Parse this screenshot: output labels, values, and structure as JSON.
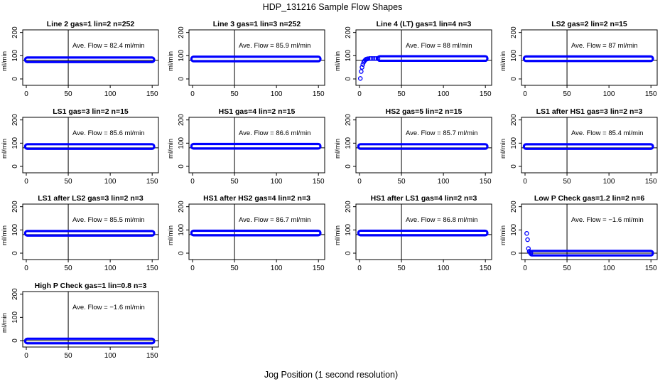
{
  "figure": {
    "title": "HDP_131216  Sample Flow Shapes",
    "xlabel": "Jog Position (1 second resolution)",
    "ylabel": "ml/min",
    "point_color": "#0000ff",
    "annotation_prefix": "Ave. Flow = ",
    "annotation_unit": "ml/min"
  },
  "chart_data": [
    {
      "type": "scatter",
      "title": "Line 2 gas=1 lin=2 n=252",
      "avg_flow": "82.4",
      "xlim": [
        0,
        150
      ],
      "ylim": [
        0,
        200
      ],
      "xticks": [
        0,
        50,
        100,
        150
      ],
      "yticks": [
        0,
        100,
        200
      ],
      "vline_x": 50,
      "hline_y": 80,
      "shape": "flat",
      "x": [
        1,
        150
      ],
      "level": 82.4
    },
    {
      "type": "scatter",
      "title": "Line 3 gas=1 lin=3 n=252",
      "avg_flow": "85.9",
      "xlim": [
        0,
        150
      ],
      "ylim": [
        0,
        200
      ],
      "xticks": [
        0,
        50,
        100,
        150
      ],
      "yticks": [
        0,
        100,
        200
      ],
      "vline_x": 50,
      "hline_y": 80,
      "shape": "flat",
      "x": [
        1,
        150
      ],
      "level": 85.9
    },
    {
      "type": "scatter",
      "title": "Line 4 (LT) gas=1 lin=4 n=3",
      "avg_flow": "88",
      "xlim": [
        0,
        150
      ],
      "ylim": [
        0,
        200
      ],
      "xticks": [
        0,
        50,
        100,
        150
      ],
      "yticks": [
        0,
        100,
        200
      ],
      "vline_x": 50,
      "hline_y": 80,
      "shape": "ramp",
      "x": [
        1,
        150
      ],
      "level": 88,
      "ramp_points": [
        [
          1,
          2
        ],
        [
          2,
          32
        ],
        [
          3,
          50
        ],
        [
          4,
          62
        ],
        [
          5,
          72
        ],
        [
          6,
          78
        ],
        [
          7,
          82
        ],
        [
          8,
          85
        ],
        [
          9,
          86
        ],
        [
          10,
          87
        ]
      ]
    },
    {
      "type": "scatter",
      "title": "LS2 gas=2 lin=2 n=15",
      "avg_flow": "87",
      "xlim": [
        0,
        150
      ],
      "ylim": [
        0,
        200
      ],
      "xticks": [
        0,
        50,
        100,
        150
      ],
      "yticks": [
        0,
        100,
        200
      ],
      "vline_x": 50,
      "hline_y": 80,
      "shape": "flat",
      "x": [
        1,
        150
      ],
      "level": 87
    },
    {
      "type": "scatter",
      "title": "LS1 gas=3 lin=2 n=15",
      "avg_flow": "85.6",
      "xlim": [
        0,
        150
      ],
      "ylim": [
        0,
        200
      ],
      "xticks": [
        0,
        50,
        100,
        150
      ],
      "yticks": [
        0,
        100,
        200
      ],
      "vline_x": 50,
      "hline_y": 80,
      "shape": "flat",
      "x": [
        1,
        150
      ],
      "level": 85.6
    },
    {
      "type": "scatter",
      "title": "HS1 gas=4 lin=2 n=15",
      "avg_flow": "86.6",
      "xlim": [
        0,
        150
      ],
      "ylim": [
        0,
        200
      ],
      "xticks": [
        0,
        50,
        100,
        150
      ],
      "yticks": [
        0,
        100,
        200
      ],
      "vline_x": 50,
      "hline_y": 80,
      "shape": "flat",
      "x": [
        1,
        150
      ],
      "level": 86.6
    },
    {
      "type": "scatter",
      "title": "HS2 gas=5 lin=2 n=15",
      "avg_flow": "85.7",
      "xlim": [
        0,
        150
      ],
      "ylim": [
        0,
        200
      ],
      "xticks": [
        0,
        50,
        100,
        150
      ],
      "yticks": [
        0,
        100,
        200
      ],
      "vline_x": 50,
      "hline_y": 80,
      "shape": "flat",
      "x": [
        1,
        150
      ],
      "level": 85.7
    },
    {
      "type": "scatter",
      "title": "LS1 after HS1 gas=3 lin=2 n=3",
      "avg_flow": "85.4",
      "xlim": [
        0,
        150
      ],
      "ylim": [
        0,
        200
      ],
      "xticks": [
        0,
        50,
        100,
        150
      ],
      "yticks": [
        0,
        100,
        200
      ],
      "vline_x": 50,
      "hline_y": 80,
      "shape": "flat",
      "x": [
        1,
        150
      ],
      "level": 85.4
    },
    {
      "type": "scatter",
      "title": "LS1 after LS2 gas=3 lin=2 n=3",
      "avg_flow": "85.5",
      "xlim": [
        0,
        150
      ],
      "ylim": [
        0,
        200
      ],
      "xticks": [
        0,
        50,
        100,
        150
      ],
      "yticks": [
        0,
        100,
        200
      ],
      "vline_x": 50,
      "hline_y": 80,
      "shape": "flat",
      "x": [
        1,
        150
      ],
      "level": 85.5
    },
    {
      "type": "scatter",
      "title": "HS1 after HS2 gas=4 lin=2 n=3",
      "avg_flow": "86.7",
      "xlim": [
        0,
        150
      ],
      "ylim": [
        0,
        200
      ],
      "xticks": [
        0,
        50,
        100,
        150
      ],
      "yticks": [
        0,
        100,
        200
      ],
      "vline_x": 50,
      "hline_y": 80,
      "shape": "flat",
      "x": [
        1,
        150
      ],
      "level": 86.7
    },
    {
      "type": "scatter",
      "title": "HS1 after LS1 gas=4 lin=2 n=3",
      "avg_flow": "86.8",
      "xlim": [
        0,
        150
      ],
      "ylim": [
        0,
        200
      ],
      "xticks": [
        0,
        50,
        100,
        150
      ],
      "yticks": [
        0,
        100,
        200
      ],
      "vline_x": 50,
      "hline_y": 80,
      "shape": "flat",
      "x": [
        1,
        150
      ],
      "level": 86.8
    },
    {
      "type": "scatter",
      "title": "Low P Check gas=1.2 lin=2 n=6",
      "avg_flow": "−1.6",
      "xlim": [
        0,
        150
      ],
      "ylim": [
        0,
        200
      ],
      "xticks": [
        0,
        50,
        100,
        150
      ],
      "yticks": [
        0,
        100,
        200
      ],
      "vline_x": 50,
      "hline_y": 0,
      "shape": "decay",
      "x": [
        1,
        150
      ],
      "level": 0,
      "ramp_points": [
        [
          2,
          85
        ],
        [
          3,
          58
        ],
        [
          4,
          20
        ],
        [
          5,
          8
        ],
        [
          6,
          3
        ],
        [
          7,
          1
        ]
      ]
    },
    {
      "type": "scatter",
      "title": "High P Check gas=1 lin=0.8 n=3",
      "avg_flow": "−1.6",
      "xlim": [
        0,
        150
      ],
      "ylim": [
        0,
        200
      ],
      "xticks": [
        0,
        50,
        100,
        150
      ],
      "yticks": [
        0,
        100,
        200
      ],
      "vline_x": 50,
      "hline_y": 0,
      "shape": "flat",
      "x": [
        1,
        150
      ],
      "level": -1.6
    }
  ]
}
